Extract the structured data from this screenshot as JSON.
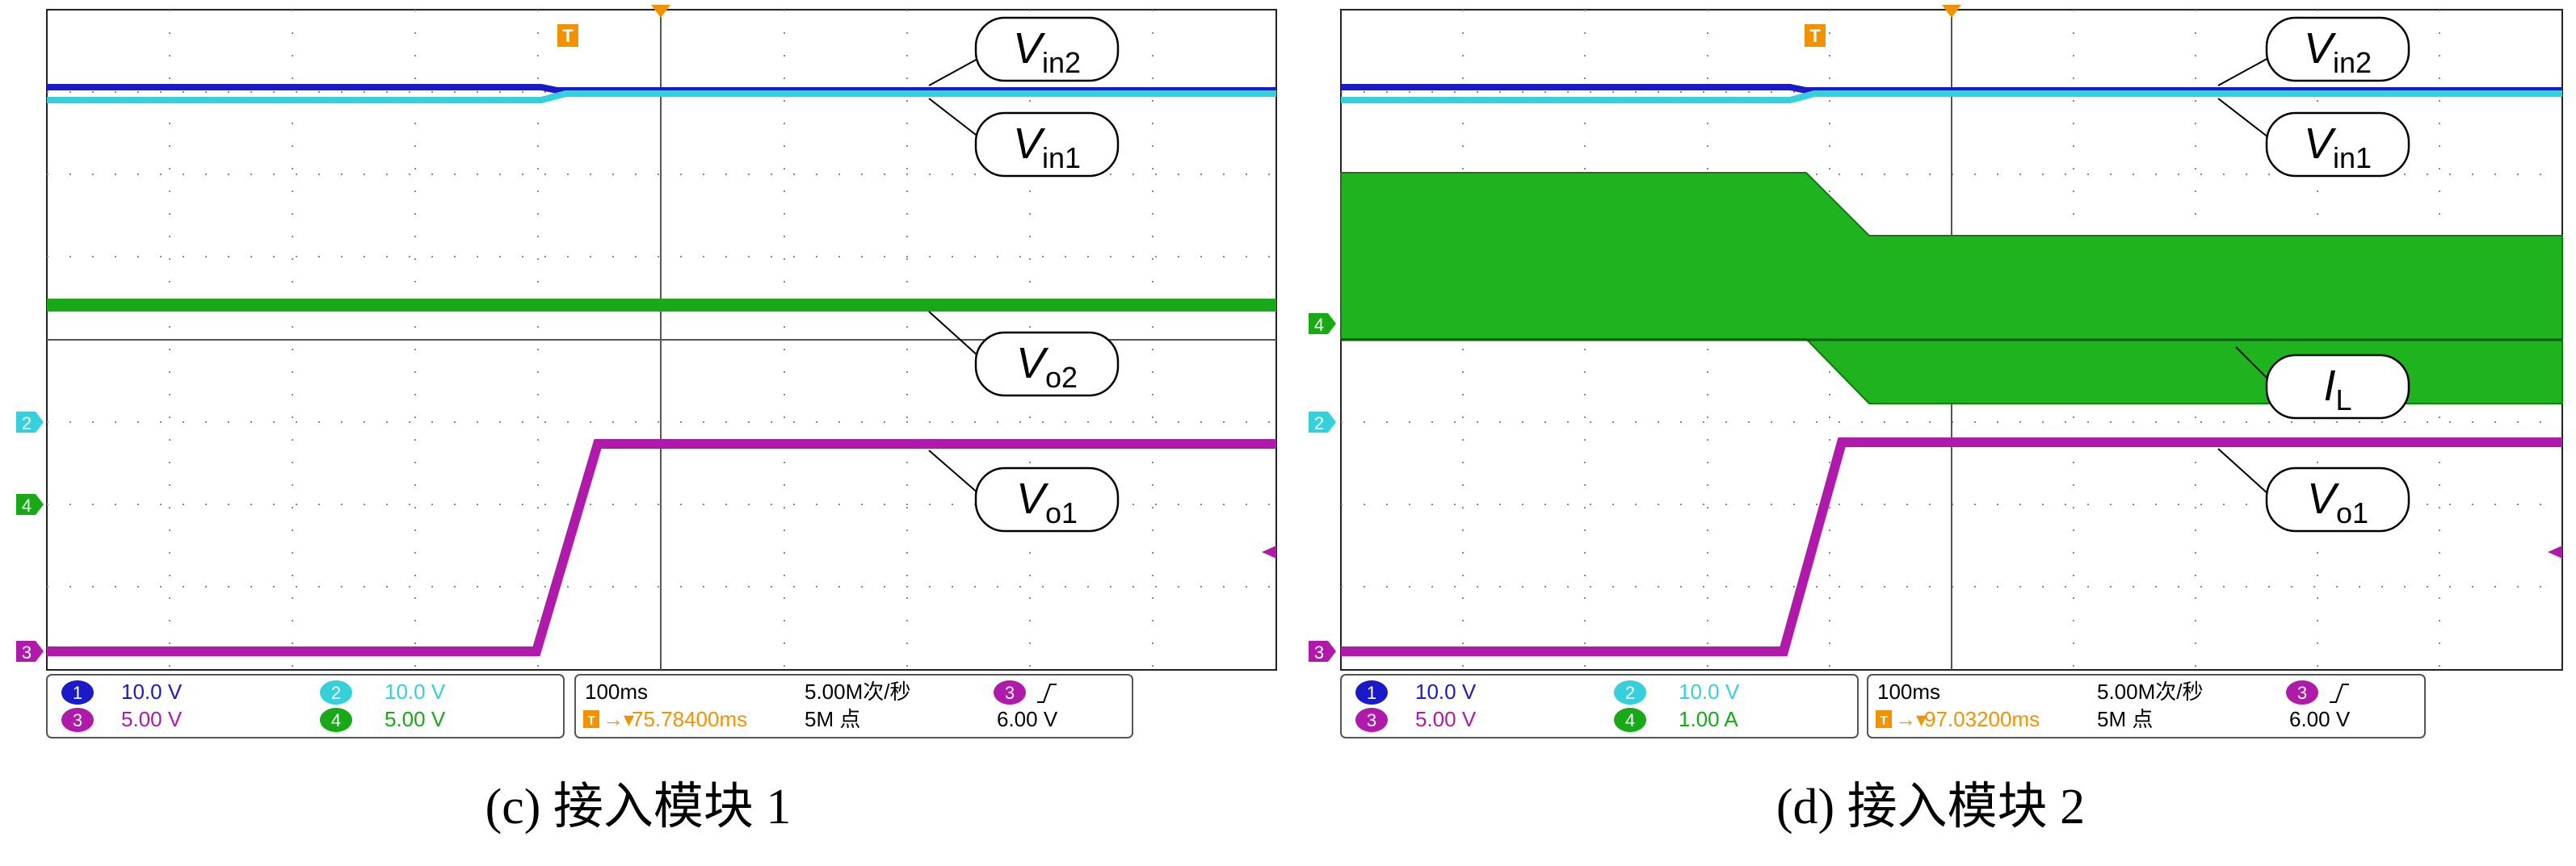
{
  "chart_data": [
    {
      "type": "line",
      "caption": "(c) 接入模块 1",
      "channels": [
        {
          "id": "1",
          "scale": "10.0 V",
          "color": "#1a1ac8"
        },
        {
          "id": "2",
          "scale": "10.0 V",
          "color": "#35d0dc"
        },
        {
          "id": "3",
          "scale": "5.00 V",
          "color": "#b01aaa"
        },
        {
          "id": "4",
          "scale": "5.00 V",
          "color": "#18a818"
        }
      ],
      "timebase": "100ms",
      "sample_rate": "5.00M次/秒",
      "record_length": "5M 点",
      "trigger_channel": "3",
      "trigger_level": "6.00 V",
      "trigger_position": "75.78400ms",
      "trace_labels": [
        {
          "base": "V",
          "sub": "in2"
        },
        {
          "base": "V",
          "sub": "in1"
        },
        {
          "base": "V",
          "sub": "o2"
        },
        {
          "base": "V",
          "sub": "o1"
        }
      ],
      "ground_markers": [
        "2",
        "4",
        "3"
      ],
      "grid": true
    },
    {
      "type": "line",
      "caption": "(d) 接入模块 2",
      "channels": [
        {
          "id": "1",
          "scale": "10.0 V",
          "color": "#1a1ac8"
        },
        {
          "id": "2",
          "scale": "10.0 V",
          "color": "#35d0dc"
        },
        {
          "id": "3",
          "scale": "5.00 V",
          "color": "#b01aaa"
        },
        {
          "id": "4",
          "scale": "1.00 A",
          "color": "#18a818"
        }
      ],
      "timebase": "100ms",
      "sample_rate": "5.00M次/秒",
      "record_length": "5M 点",
      "trigger_channel": "3",
      "trigger_level": "6.00 V",
      "trigger_position": "97.03200ms",
      "trace_labels": [
        {
          "base": "V",
          "sub": "in2"
        },
        {
          "base": "V",
          "sub": "in1"
        },
        {
          "base": "I",
          "sub": "L"
        },
        {
          "base": "V",
          "sub": "o1"
        }
      ],
      "ground_markers": [
        "4",
        "2",
        "3"
      ],
      "grid": true
    }
  ]
}
